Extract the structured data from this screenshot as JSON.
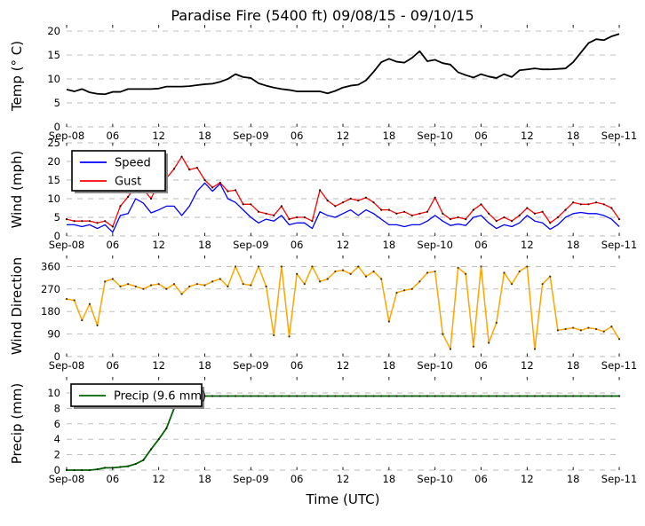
{
  "title": "Paradise Fire (5400 ft) 09/08/15 - 09/10/15",
  "xlabel": "Time (UTC)",
  "x_axis": {
    "unit": "hours since Sep-08 00:00 UTC",
    "range_hours": [
      0,
      72
    ],
    "ticks_hours": [
      0,
      6,
      12,
      18,
      24,
      30,
      36,
      42,
      48,
      54,
      60,
      66,
      72
    ],
    "tick_labels": [
      "Sep-08",
      "06",
      "12",
      "18",
      "Sep-09",
      "06",
      "12",
      "18",
      "Sep-10",
      "06",
      "12",
      "18",
      "Sep-11"
    ]
  },
  "chart_data": [
    {
      "type": "line",
      "title": "Paradise Fire (5400 ft) 09/08/15 - 09/10/15",
      "ylabel": "Temp (° C)",
      "ylim": [
        0,
        20
      ],
      "yticks": [
        0,
        5,
        10,
        15,
        20
      ],
      "grid": "horizontal-dashed",
      "series": [
        {
          "name": "Temp",
          "color": "#000000",
          "linewidth": 1.8,
          "values": [
            7.8,
            7.4,
            7.9,
            7.2,
            6.9,
            6.8,
            7.3,
            7.3,
            7.9,
            7.9,
            7.9,
            7.9,
            8.0,
            8.4,
            8.4,
            8.4,
            8.5,
            8.7,
            8.9,
            9.0,
            9.4,
            10.0,
            11.0,
            10.4,
            10.2,
            9.1,
            8.6,
            8.2,
            7.9,
            7.7,
            7.4,
            7.4,
            7.4,
            7.4,
            7.0,
            7.5,
            8.2,
            8.6,
            8.8,
            9.7,
            11.5,
            13.5,
            14.2,
            13.6,
            13.4,
            14.4,
            15.8,
            13.7,
            14.0,
            13.3,
            13.0,
            11.4,
            10.8,
            10.3,
            11.0,
            10.5,
            10.2,
            11.0,
            10.4,
            11.8,
            12.0,
            12.2,
            12.0,
            12.0,
            12.1,
            12.2,
            13.5,
            15.5,
            17.5,
            18.3,
            18.1,
            18.9,
            19.4
          ]
        }
      ]
    },
    {
      "type": "line",
      "ylabel": "Wind (mph)",
      "ylim": [
        0,
        25
      ],
      "yticks": [
        0,
        5,
        10,
        15,
        20,
        25
      ],
      "grid": "horizontal-dashed",
      "legend": {
        "show": true,
        "loc": "upper left"
      },
      "series": [
        {
          "name": "Speed",
          "color": "#0000ff",
          "linewidth": 1.3,
          "values": [
            3.0,
            3.0,
            2.5,
            3.0,
            2.0,
            3.0,
            1.0,
            5.5,
            6.0,
            10.0,
            8.8,
            6.2,
            7.0,
            8.0,
            8.0,
            5.5,
            8.0,
            12.0,
            14.2,
            12.0,
            14.0,
            10.0,
            9.0,
            7.0,
            5.0,
            3.5,
            4.5,
            4.0,
            5.5,
            3.0,
            3.5,
            3.5,
            2.0,
            6.5,
            5.5,
            5.0,
            6.0,
            7.0,
            5.5,
            7.0,
            6.0,
            4.5,
            3.0,
            3.0,
            2.5,
            3.0,
            3.0,
            4.0,
            5.5,
            4.0,
            2.8,
            3.2,
            2.8,
            5.0,
            5.5,
            3.5,
            2.0,
            3.0,
            2.5,
            3.5,
            5.5,
            4.0,
            3.5,
            1.8,
            3.0,
            5.0,
            6.0,
            6.3,
            6.0,
            6.0,
            5.5,
            4.5,
            2.5
          ]
        },
        {
          "name": "Gust",
          "color": "#ff0000",
          "linewidth": 1.3,
          "marker_color": "#2b0000",
          "values": [
            4.5,
            4.0,
            4.0,
            4.0,
            3.5,
            4.0,
            2.5,
            8.0,
            10.5,
            13.5,
            12.5,
            10.0,
            14.5,
            15.5,
            18.0,
            21.3,
            17.8,
            18.3,
            15.0,
            13.0,
            14.3,
            12.0,
            12.3,
            8.5,
            8.5,
            6.5,
            6.0,
            5.5,
            8.0,
            4.5,
            5.0,
            5.0,
            4.0,
            12.3,
            9.5,
            8.0,
            9.0,
            10.0,
            9.5,
            10.3,
            9.0,
            7.0,
            7.0,
            6.0,
            6.5,
            5.5,
            6.0,
            6.5,
            10.3,
            6.0,
            4.5,
            5.0,
            4.5,
            7.0,
            8.5,
            6.0,
            4.0,
            5.0,
            4.0,
            5.5,
            7.5,
            6.0,
            6.5,
            3.5,
            5.0,
            7.0,
            9.0,
            8.5,
            8.5,
            9.0,
            8.5,
            7.5,
            4.5
          ]
        }
      ]
    },
    {
      "type": "line",
      "ylabel": "Wind Direction",
      "ylim": [
        0,
        360
      ],
      "yticks": [
        0,
        90,
        180,
        270,
        360
      ],
      "grid": "horizontal-dashed",
      "series": [
        {
          "name": "Wind Direction",
          "color": "#ffa500",
          "linewidth": 1.5,
          "marker_color": "#4a3200",
          "values": [
            230,
            225,
            145,
            210,
            125,
            300,
            310,
            280,
            290,
            280,
            270,
            285,
            290,
            270,
            290,
            250,
            280,
            290,
            285,
            300,
            310,
            280,
            360,
            290,
            285,
            360,
            280,
            85,
            360,
            80,
            330,
            290,
            360,
            300,
            310,
            340,
            345,
            330,
            360,
            320,
            340,
            310,
            140,
            255,
            265,
            270,
            300,
            335,
            340,
            90,
            30,
            355,
            330,
            40,
            360,
            55,
            135,
            335,
            290,
            340,
            360,
            30,
            290,
            320,
            105,
            110,
            115,
            105,
            115,
            110,
            100,
            120,
            70
          ]
        }
      ]
    },
    {
      "type": "line",
      "ylabel": "Precip (mm)",
      "ylim": [
        0,
        10
      ],
      "yticks": [
        0,
        2,
        4,
        6,
        8,
        10
      ],
      "grid": "horizontal-dashed",
      "legend": {
        "show": true,
        "loc": "upper left"
      },
      "precip_total_mm": 9.6,
      "series": [
        {
          "name": "Precip (9.6 mm)",
          "color": "#006400",
          "linewidth": 1.8,
          "marker_color": "#032803",
          "values": [
            0,
            0,
            0,
            0,
            0.1,
            0.3,
            0.3,
            0.4,
            0.5,
            0.8,
            1.3,
            2.7,
            4.0,
            5.4,
            8.0,
            9.3,
            9.6,
            9.6,
            9.6,
            9.6,
            9.6,
            9.6,
            9.6,
            9.6,
            9.6,
            9.6,
            9.6,
            9.6,
            9.6,
            9.6,
            9.6,
            9.6,
            9.6,
            9.6,
            9.6,
            9.6,
            9.6,
            9.6,
            9.6,
            9.6,
            9.6,
            9.6,
            9.6,
            9.6,
            9.6,
            9.6,
            9.6,
            9.6,
            9.6,
            9.6,
            9.6,
            9.6,
            9.6,
            9.6,
            9.6,
            9.6,
            9.6,
            9.6,
            9.6,
            9.6,
            9.6,
            9.6,
            9.6,
            9.6,
            9.6,
            9.6,
            9.6,
            9.6,
            9.6,
            9.6,
            9.6,
            9.6,
            9.6
          ]
        }
      ]
    }
  ],
  "colors": {
    "grid": "#b8b8b8",
    "temp": "#000000",
    "speed": "#0000ff",
    "gust": "#ff0000",
    "wind_direction": "#ffa500",
    "precip": "#006400"
  }
}
